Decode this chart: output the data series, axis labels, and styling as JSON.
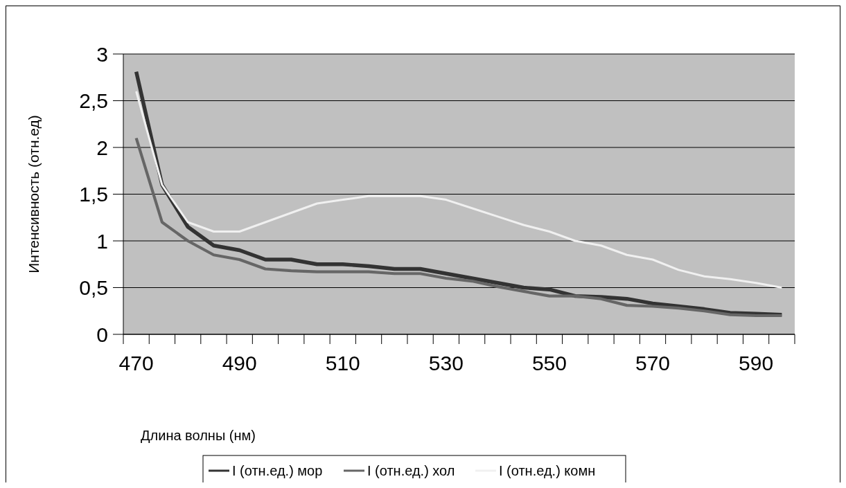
{
  "chart_data": {
    "type": "line",
    "xlabel": "Длина волны (нм)",
    "ylabel": "Интенсивность (отн.ед)",
    "categories": [
      "470",
      null,
      null,
      null,
      "490",
      null,
      null,
      null,
      "510",
      null,
      null,
      null,
      "530",
      null,
      null,
      null,
      "550",
      null,
      null,
      null,
      "570",
      null,
      null,
      null,
      "590",
      null
    ],
    "series": [
      {
        "name": "I (отн.ед.) мор",
        "color": "#333333",
        "values": [
          2.81,
          1.6,
          1.15,
          0.95,
          0.9,
          0.8,
          0.8,
          0.75,
          0.75,
          0.73,
          0.7,
          0.7,
          0.65,
          0.6,
          0.55,
          0.5,
          0.48,
          0.41,
          0.4,
          0.38,
          0.33,
          0.3,
          0.27,
          0.23,
          0.22,
          0.21
        ]
      },
      {
        "name": "I (отн.ед.) хол",
        "color": "#666666",
        "values": [
          2.1,
          1.2,
          1.0,
          0.85,
          0.8,
          0.7,
          0.68,
          0.67,
          0.67,
          0.67,
          0.65,
          0.65,
          0.6,
          0.57,
          0.51,
          0.46,
          0.41,
          0.41,
          0.38,
          0.31,
          0.3,
          0.28,
          0.25,
          0.21,
          0.2,
          0.2
        ]
      },
      {
        "name": "I (отн.ед.) комн",
        "color": "#f0f0f0",
        "values": [
          2.6,
          1.6,
          1.2,
          1.1,
          1.1,
          1.2,
          1.3,
          1.4,
          1.44,
          1.48,
          1.48,
          1.48,
          1.44,
          1.35,
          1.26,
          1.17,
          1.1,
          1.0,
          0.95,
          0.85,
          0.8,
          0.69,
          0.62,
          0.59,
          0.55,
          0.5
        ]
      }
    ],
    "ylim": [
      0,
      3
    ],
    "yticks": [
      0,
      {
        "value": 0.5,
        "label": "0,5"
      },
      1,
      {
        "value": 1.5,
        "label": "1,5"
      },
      2,
      {
        "value": 2.5,
        "label": "2,5"
      },
      3
    ],
    "grid": "y",
    "legend": "bottom",
    "marker": "none",
    "line_style": "solid"
  }
}
